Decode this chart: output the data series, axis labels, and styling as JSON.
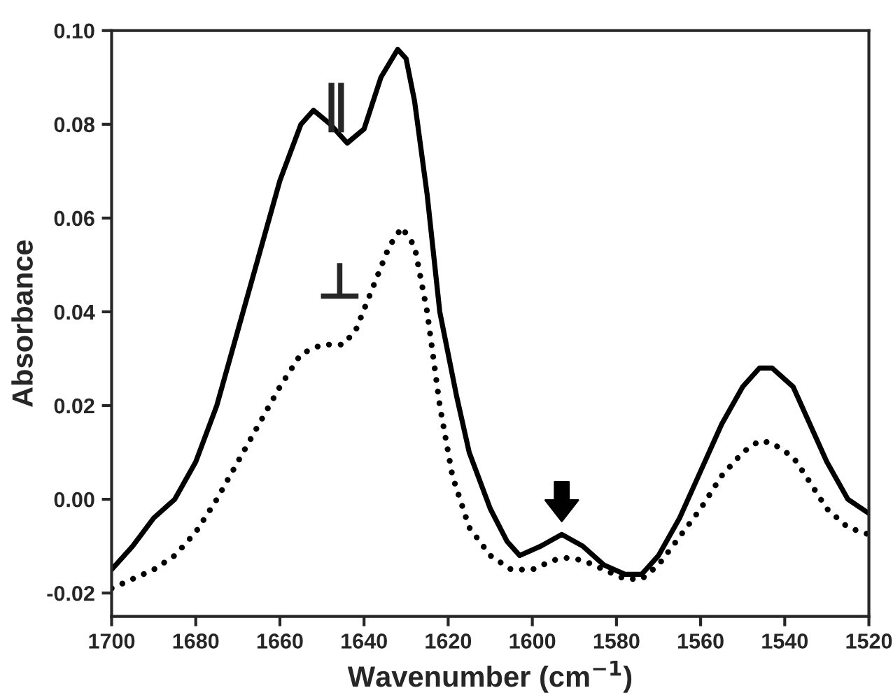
{
  "chart_data": {
    "type": "line",
    "xlabel": "Wavenumber (cm$^{−1}$)",
    "ylabel": "Absorbance",
    "xlim": [
      1700,
      1520
    ],
    "xticks": [
      1700,
      1680,
      1660,
      1640,
      1620,
      1600,
      1580,
      1560,
      1540,
      1520
    ],
    "ylim": [
      -0.025,
      0.1
    ],
    "yticks": [
      {
        "value": -0.02,
        "label": "-0.02"
      },
      {
        "value": 0,
        "label": "0.00"
      },
      {
        "value": 0.02,
        "label": "0.02"
      },
      {
        "value": 0.04,
        "label": "0.04"
      },
      {
        "value": 0.06,
        "label": "0.06"
      },
      {
        "value": 0.08,
        "label": "0.08"
      },
      {
        "value": 0.1,
        "label": "0.10"
      }
    ],
    "grid": false,
    "marker": "none",
    "series": [
      {
        "name": "∥",
        "color": "#000000",
        "line_style": "solid",
        "x": [
          1700,
          1695,
          1690,
          1685,
          1680,
          1675,
          1670,
          1665,
          1660,
          1655,
          1652,
          1648,
          1644,
          1640,
          1636,
          1632,
          1630,
          1628,
          1625,
          1622,
          1618,
          1615,
          1610,
          1606,
          1603,
          1598,
          1593,
          1588,
          1583,
          1578,
          1574,
          1570,
          1565,
          1560,
          1555,
          1550,
          1546,
          1543,
          1538,
          1535,
          1530,
          1525,
          1520
        ],
        "values": [
          -0.015,
          -0.01,
          -0.004,
          0.0,
          0.008,
          0.02,
          0.036,
          0.052,
          0.068,
          0.08,
          0.083,
          0.08,
          0.076,
          0.079,
          0.09,
          0.096,
          0.094,
          0.085,
          0.065,
          0.04,
          0.022,
          0.01,
          -0.002,
          -0.009,
          -0.012,
          -0.01,
          -0.0075,
          -0.01,
          -0.014,
          -0.016,
          -0.016,
          -0.012,
          -0.004,
          0.006,
          0.016,
          0.024,
          0.028,
          0.028,
          0.024,
          0.018,
          0.008,
          0.0,
          -0.003
        ]
      },
      {
        "name": "⊥",
        "color": "#000000",
        "line_style": "dotted",
        "x": [
          1700,
          1695,
          1690,
          1685,
          1680,
          1675,
          1670,
          1665,
          1660,
          1655,
          1650,
          1645,
          1642,
          1638,
          1634,
          1631,
          1628,
          1625,
          1622,
          1619,
          1615,
          1610,
          1605,
          1600,
          1595,
          1592,
          1588,
          1583,
          1578,
          1574,
          1570,
          1565,
          1560,
          1555,
          1550,
          1546,
          1543,
          1538,
          1535,
          1530,
          1525,
          1520
        ],
        "values": [
          -0.019,
          -0.017,
          -0.015,
          -0.012,
          -0.007,
          0.0,
          0.008,
          0.016,
          0.024,
          0.031,
          0.033,
          0.033,
          0.036,
          0.045,
          0.054,
          0.058,
          0.054,
          0.04,
          0.02,
          0.005,
          -0.006,
          -0.012,
          -0.015,
          -0.015,
          -0.013,
          -0.0125,
          -0.013,
          -0.015,
          -0.017,
          -0.017,
          -0.014,
          -0.008,
          -0.002,
          0.005,
          0.01,
          0.0125,
          0.012,
          0.009,
          0.005,
          -0.002,
          -0.006,
          -0.0075
        ]
      }
    ]
  }
}
